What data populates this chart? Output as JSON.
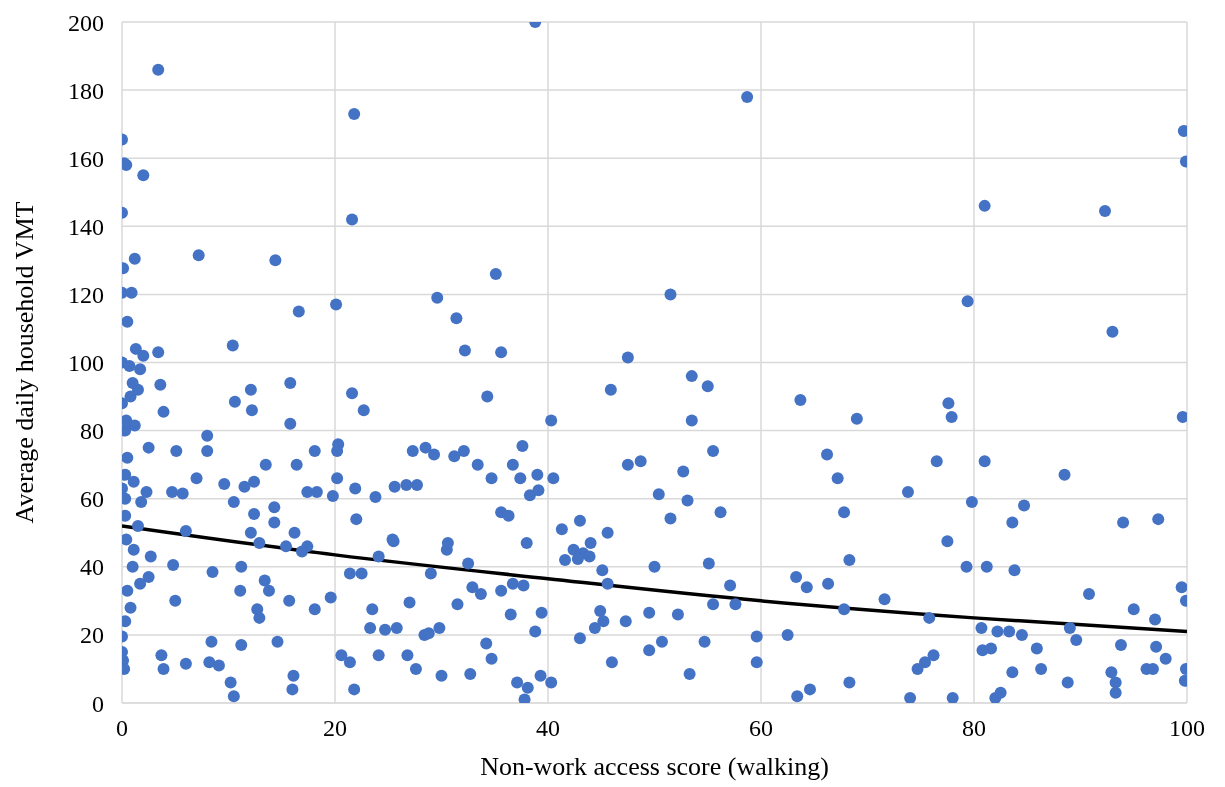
{
  "chart_data": {
    "type": "scatter",
    "xlabel": "Non-work access score (walking)",
    "ylabel": "Average daily household VMT",
    "xlim": [
      0,
      100
    ],
    "xticks": [
      0,
      20,
      40,
      60,
      80,
      100
    ],
    "ylim": [
      0,
      200
    ],
    "yticks": [
      0,
      20,
      40,
      60,
      80,
      100,
      120,
      140,
      160,
      180,
      200
    ],
    "grid": true,
    "legend": false,
    "series": [
      {
        "color": "#4472c4",
        "marker": "circle",
        "x": [
          0,
          0.2,
          0.4,
          0,
          0.1,
          0,
          0.5,
          3.4,
          38.8,
          21.8,
          58.7,
          99.7,
          99.9,
          2,
          81,
          92.3,
          21.6,
          7.2,
          1.2,
          14.4,
          35.1,
          0.9,
          51.5,
          29.6,
          79.4,
          20.1,
          16.6,
          31.4,
          93,
          10.4,
          1.3,
          35.6,
          32.2,
          3.4,
          2,
          47.5,
          0,
          0.7,
          15.8,
          3.6,
          45.9,
          55,
          12.1,
          21.6,
          34.3,
          63.7,
          77.6,
          10.6,
          0,
          22.7,
          12.2,
          3.9,
          77.9,
          99.6,
          69,
          53.5,
          40.3,
          15.8,
          1.2,
          8,
          20.3,
          37.6,
          2.5,
          28.5,
          5.1,
          32.1,
          27.3,
          55.5,
          8,
          66.2,
          31.2,
          76.5,
          81,
          48.7,
          47.5,
          36.7,
          13.5,
          16.4,
          53.5,
          88.5,
          37.4,
          40.5,
          20.2,
          52.7,
          67.2,
          7,
          50.4,
          0,
          2.3,
          26.7,
          25.6,
          21.9,
          79.8,
          73.8,
          84.7,
          97.3,
          83.6,
          94,
          67.8,
          56.2,
          35.6,
          53.1,
          36.3,
          51.5,
          14.3,
          10.5,
          41.3,
          45.6,
          43,
          42.4,
          44,
          41.6,
          43.3,
          68.3,
          55.1,
          50,
          63.3,
          66.3,
          64.3,
          57.1,
          77.5,
          79.3,
          81.2,
          83.8,
          45.1,
          30.5,
          32.5,
          29,
          38,
          24.1,
          25.5,
          22.5,
          21.4,
          19.6,
          18.1,
          4.8,
          2.7,
          6,
          8.5,
          5,
          71.6,
          75.8,
          55.5,
          57.6,
          50.7,
          52.2,
          49.5,
          54.7,
          53.3,
          59.6,
          62.5,
          67.8,
          68.3,
          63.4,
          64.6,
          74,
          78,
          82,
          82.5,
          80.7,
          82.2,
          83.3,
          84.5,
          81.6,
          83.6,
          85.9,
          86.3,
          88.8,
          89,
          89.6,
          90.8,
          92.9,
          93.3,
          93.3,
          93.8,
          95,
          96.2,
          96.8,
          97.1,
          97,
          98,
          99.5,
          99.9,
          99.9,
          99.8,
          80.8,
          76.2,
          75.4,
          74.7,
          59.6,
          46,
          49.5,
          44.4,
          43,
          45.2,
          38.1,
          37.1,
          37.8,
          39.3,
          40.3,
          38.8,
          39.4,
          34.7,
          34.2,
          30,
          32.7,
          27.6,
          26.8,
          24.1,
          21.8,
          21.4,
          20.6,
          16,
          16.1,
          10.5,
          10.2,
          11.2,
          9.1,
          8.2,
          6,
          3.7,
          3.9,
          0,
          0.1,
          0.2,
          0,
          0.3,
          14.6,
          8.4,
          12.7,
          12.9,
          15.7,
          13.8,
          11.1,
          11.2,
          13.4,
          23.5,
          27,
          28.4,
          28.8,
          29.8,
          33.7,
          35.6,
          36.7,
          37.7,
          36.5,
          31.5,
          25.8,
          24.7,
          23.3,
          0.8,
          0.5,
          1.7,
          2.5,
          1,
          0.4,
          0.3,
          0.3,
          0.3,
          0.5,
          0.3,
          0.4,
          0.8,
          1,
          1.5,
          1.7,
          1.1,
          1.5,
          1.1,
          1.8,
          9.6,
          11.5,
          12.4,
          14.3,
          17.4,
          18.3,
          19.8,
          20.2,
          18.1,
          15.4,
          16.2,
          17.4,
          16.9,
          22,
          23.8,
          25.4,
          27.7,
          29.3,
          30.6,
          32.9,
          33.4,
          34.7,
          38.3,
          39.1,
          39,
          45.6,
          47.3,
          44.9,
          42.8,
          43.9,
          12.4,
          12.1,
          12.9,
          4.7,
          5.7
        ],
        "values": [
          165.5,
          158.5,
          158,
          144,
          127.7,
          120.5,
          112,
          186,
          200,
          173,
          178,
          168,
          159,
          155,
          146,
          144.5,
          142,
          131.5,
          130.5,
          130,
          126,
          120.5,
          120,
          119,
          118,
          117,
          115,
          113,
          109,
          105,
          104,
          103,
          103.5,
          103,
          102,
          101.5,
          100,
          99,
          94,
          93.5,
          92,
          93,
          92,
          91,
          90,
          89,
          88,
          88.5,
          88,
          86,
          86,
          85.5,
          84,
          84,
          83.5,
          83,
          83,
          82,
          81.5,
          78.5,
          76,
          75.5,
          75,
          75,
          74,
          74,
          74,
          74,
          74,
          73,
          72.5,
          71,
          71,
          71,
          70,
          70,
          70,
          70,
          96,
          67,
          66,
          66,
          66,
          68,
          66,
          66,
          61.3,
          63,
          62,
          64,
          63.5,
          63,
          59,
          62,
          58,
          54,
          53,
          53,
          56,
          56,
          56,
          59.5,
          55,
          54.2,
          53,
          59,
          51,
          50,
          53.5,
          45,
          47,
          42,
          44,
          42,
          41,
          40,
          37,
          35,
          34,
          34.5,
          47.5,
          40,
          40,
          39,
          39,
          45,
          41,
          38,
          47,
          43,
          47.5,
          38,
          38,
          31,
          27.5,
          40.5,
          43,
          50.5,
          38.5,
          30,
          30.5,
          25,
          29,
          29,
          18,
          26,
          26.5,
          18,
          8.5,
          19.5,
          20,
          27.5,
          6,
          2,
          4,
          1.5,
          1.5,
          1.5,
          3,
          22,
          21,
          21,
          20,
          16,
          9,
          16,
          10,
          6,
          22,
          18.5,
          32,
          9,
          6,
          3,
          17,
          27.5,
          10,
          10,
          16.5,
          24.5,
          13,
          34,
          30,
          10,
          6.5,
          15.5,
          14,
          12,
          10,
          12,
          12,
          15.5,
          22,
          19,
          24,
          4.5,
          6,
          1,
          8,
          6,
          21,
          26.5,
          13,
          17.5,
          8,
          8.5,
          10,
          14,
          14,
          4,
          12,
          14,
          4,
          8,
          2,
          6,
          17,
          11,
          12,
          11.5,
          14,
          10,
          15,
          12.5,
          10,
          19.5,
          24,
          18,
          18,
          27.5,
          25,
          30,
          33,
          33,
          40,
          36,
          27.5,
          29.5,
          20,
          20.5,
          22,
          32,
          33,
          35,
          34.5,
          26,
          29,
          22,
          21.5,
          22,
          28,
          33,
          35,
          37,
          40,
          48,
          55,
          60,
          67,
          72,
          80,
          83,
          90,
          94,
          92,
          98,
          65,
          52,
          45,
          59,
          64.3,
          63.5,
          65,
          57.5,
          62,
          62,
          60.8,
          74,
          74,
          46,
          50,
          46,
          44.5,
          54,
          60.5,
          48,
          64,
          73,
          47,
          34,
          70,
          66,
          61,
          62.5,
          67,
          35,
          24,
          27,
          42.3,
          43,
          55.5,
          50,
          47,
          62,
          61.5
        ]
      },
      {
        "type": "line",
        "color": "#000000",
        "marker": "none",
        "line_style": "solid",
        "x": [
          0,
          20,
          40,
          60,
          80,
          100
        ],
        "values": [
          52,
          43.5,
          36.5,
          30,
          25,
          21
        ]
      }
    ]
  }
}
